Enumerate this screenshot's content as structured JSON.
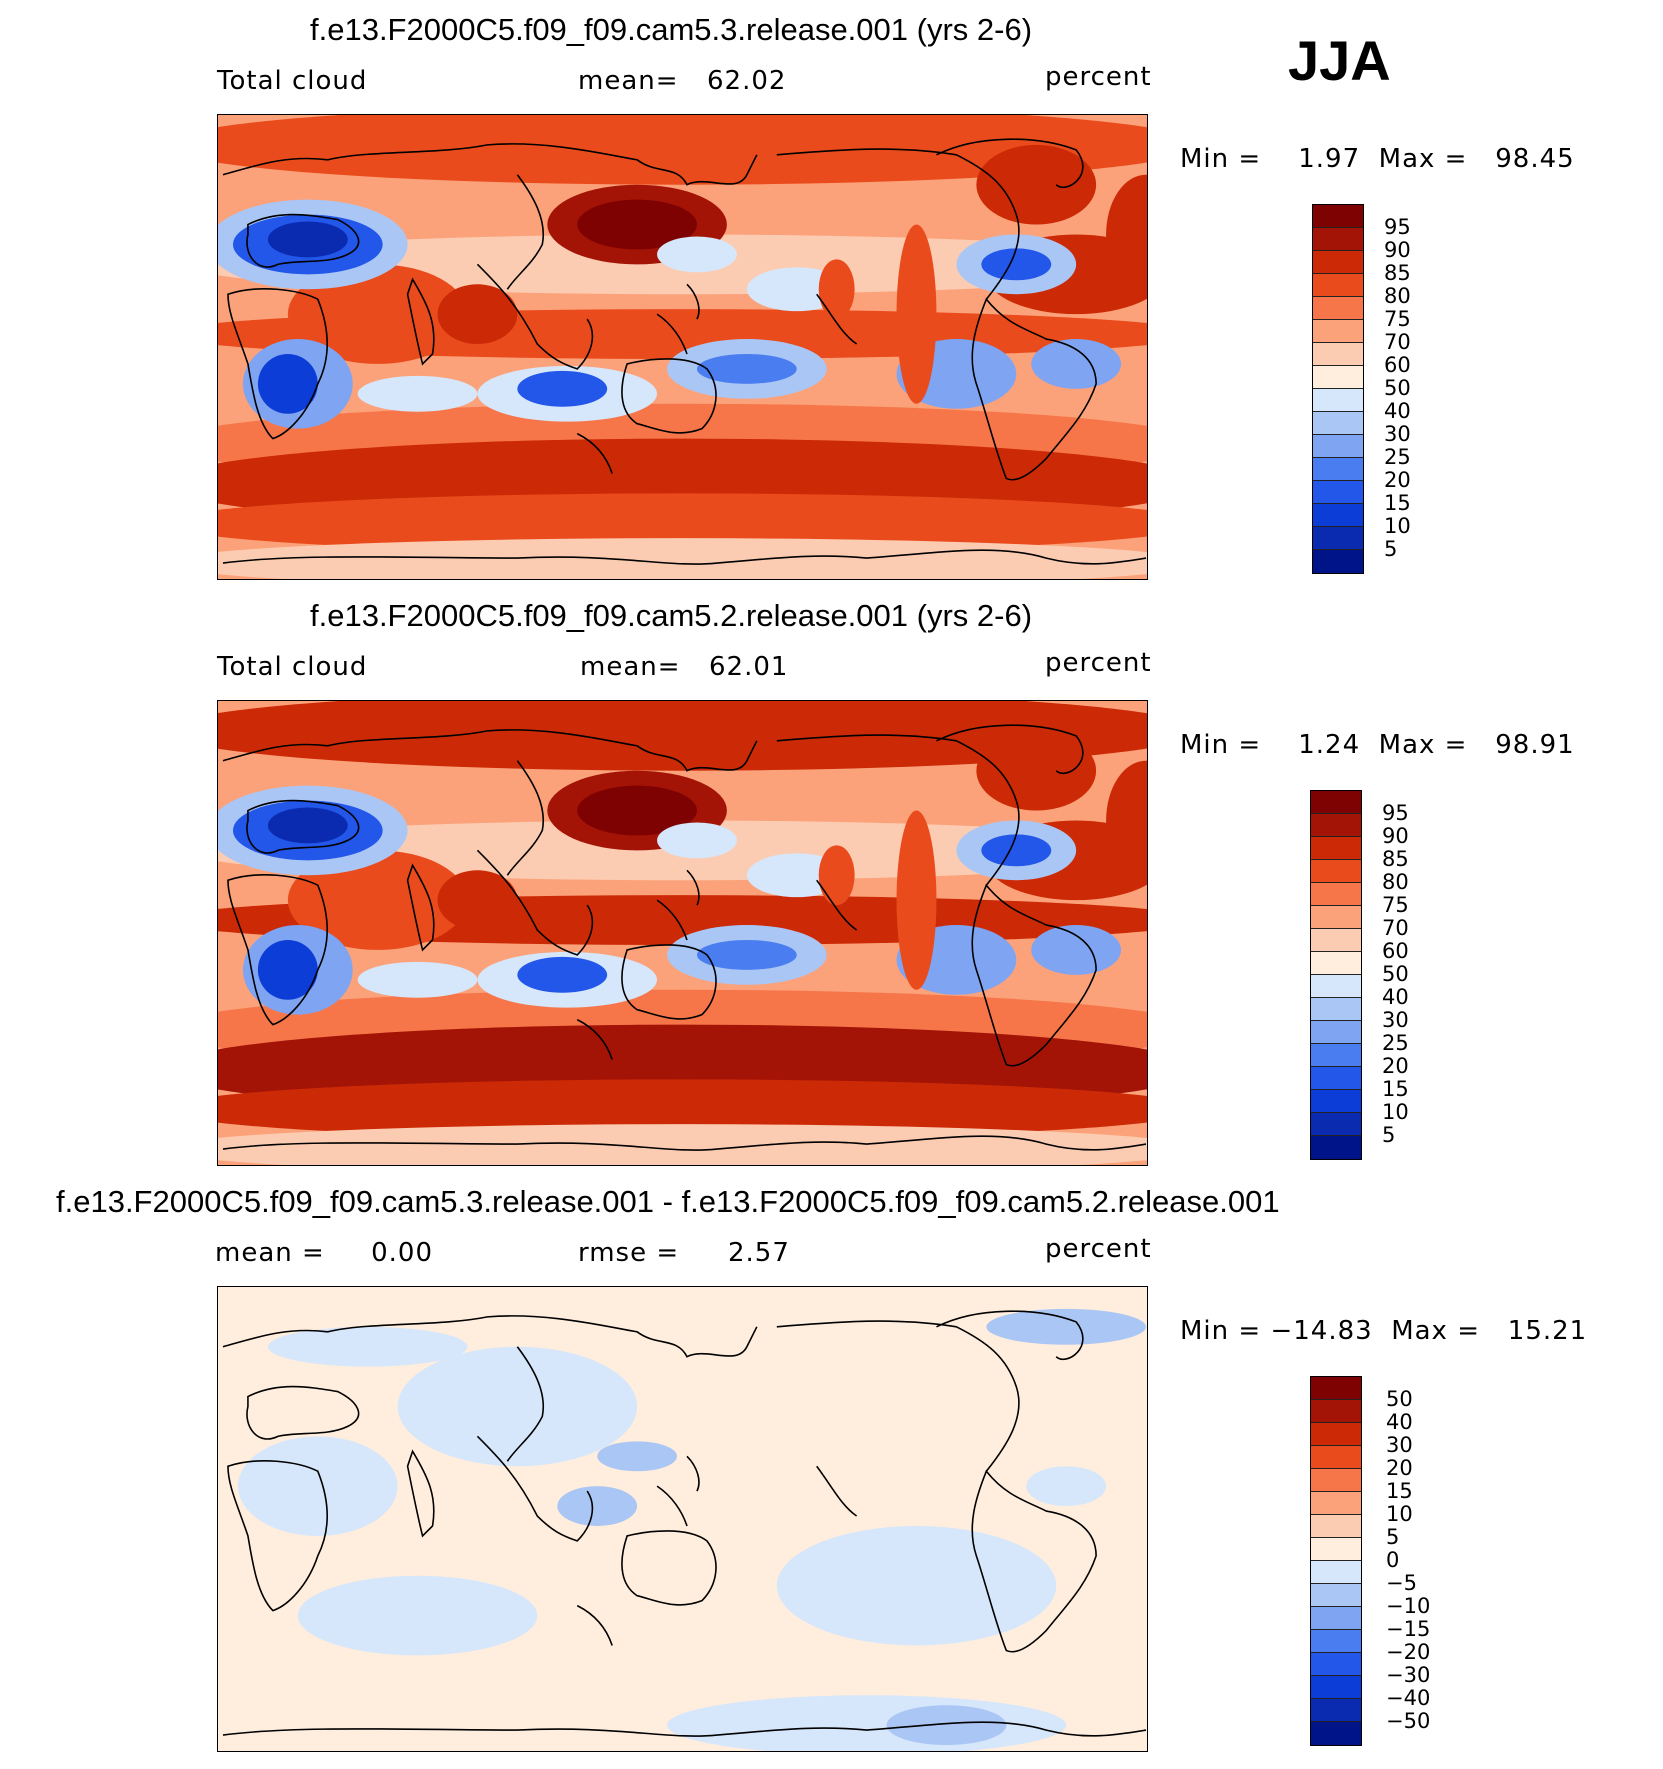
{
  "season": "JJA",
  "colors": {
    "levels_abs": [
      "#00148a",
      "#0a2bb0",
      "#0c3dd6",
      "#2257ea",
      "#4a7ef0",
      "#7ea4f2",
      "#aac6f5",
      "#d6e6fb",
      "#ffeedd",
      "#fcccb2",
      "#fba27a",
      "#f6764a",
      "#ea4b1c",
      "#cc2a06",
      "#a31406",
      "#7e0202"
    ],
    "levels_diff": [
      "#00148a",
      "#0a2bb0",
      "#0c3dd6",
      "#2257ea",
      "#4a7ef0",
      "#7ea4f2",
      "#aac6f5",
      "#d6e6fb",
      "#ffeedd",
      "#fcccb2",
      "#fba27a",
      "#f6764a",
      "#ea4b1c",
      "#cc2a06",
      "#a31406",
      "#7e0202"
    ],
    "coast": "#000000"
  },
  "panels": [
    {
      "title": "f.e13.F2000C5.f09_f09.cam5.3.release.001 (yrs 2-6)",
      "left_label": "Total cloud",
      "mid_label": "mean=",
      "mid_value": "62.02",
      "units": "percent",
      "minmax": "Min =    1.97  Max =   98.45",
      "legend_ticks": [
        "95",
        "90",
        "85",
        "80",
        "75",
        "70",
        "60",
        "50",
        "40",
        "30",
        "25",
        "20",
        "15",
        "10",
        "5"
      ],
      "field": "abs"
    },
    {
      "title": "f.e13.F2000C5.f09_f09.cam5.2.release.001 (yrs 2-6)",
      "left_label": "Total cloud",
      "mid_label": "mean=",
      "mid_value": "62.01",
      "units": "percent",
      "minmax": "Min =    1.24  Max =   98.91",
      "legend_ticks": [
        "95",
        "90",
        "85",
        "80",
        "75",
        "70",
        "60",
        "50",
        "40",
        "30",
        "25",
        "20",
        "15",
        "10",
        "5"
      ],
      "field": "abs"
    },
    {
      "title": "f.e13.F2000C5.f09_f09.cam5.3.release.001 - f.e13.F2000C5.f09_f09.cam5.2.release.001",
      "left_label": "mean =     0.00",
      "mid_label": "rmse =",
      "mid_value": "2.57",
      "units": "percent",
      "minmax": "Min = −14.83  Max =   15.21",
      "legend_ticks": [
        "50",
        "40",
        "30",
        "20",
        "15",
        "10",
        "5",
        "0",
        "−5",
        "−10",
        "−15",
        "−20",
        "−30",
        "−40",
        "−50"
      ],
      "field": "diff"
    }
  ]
}
